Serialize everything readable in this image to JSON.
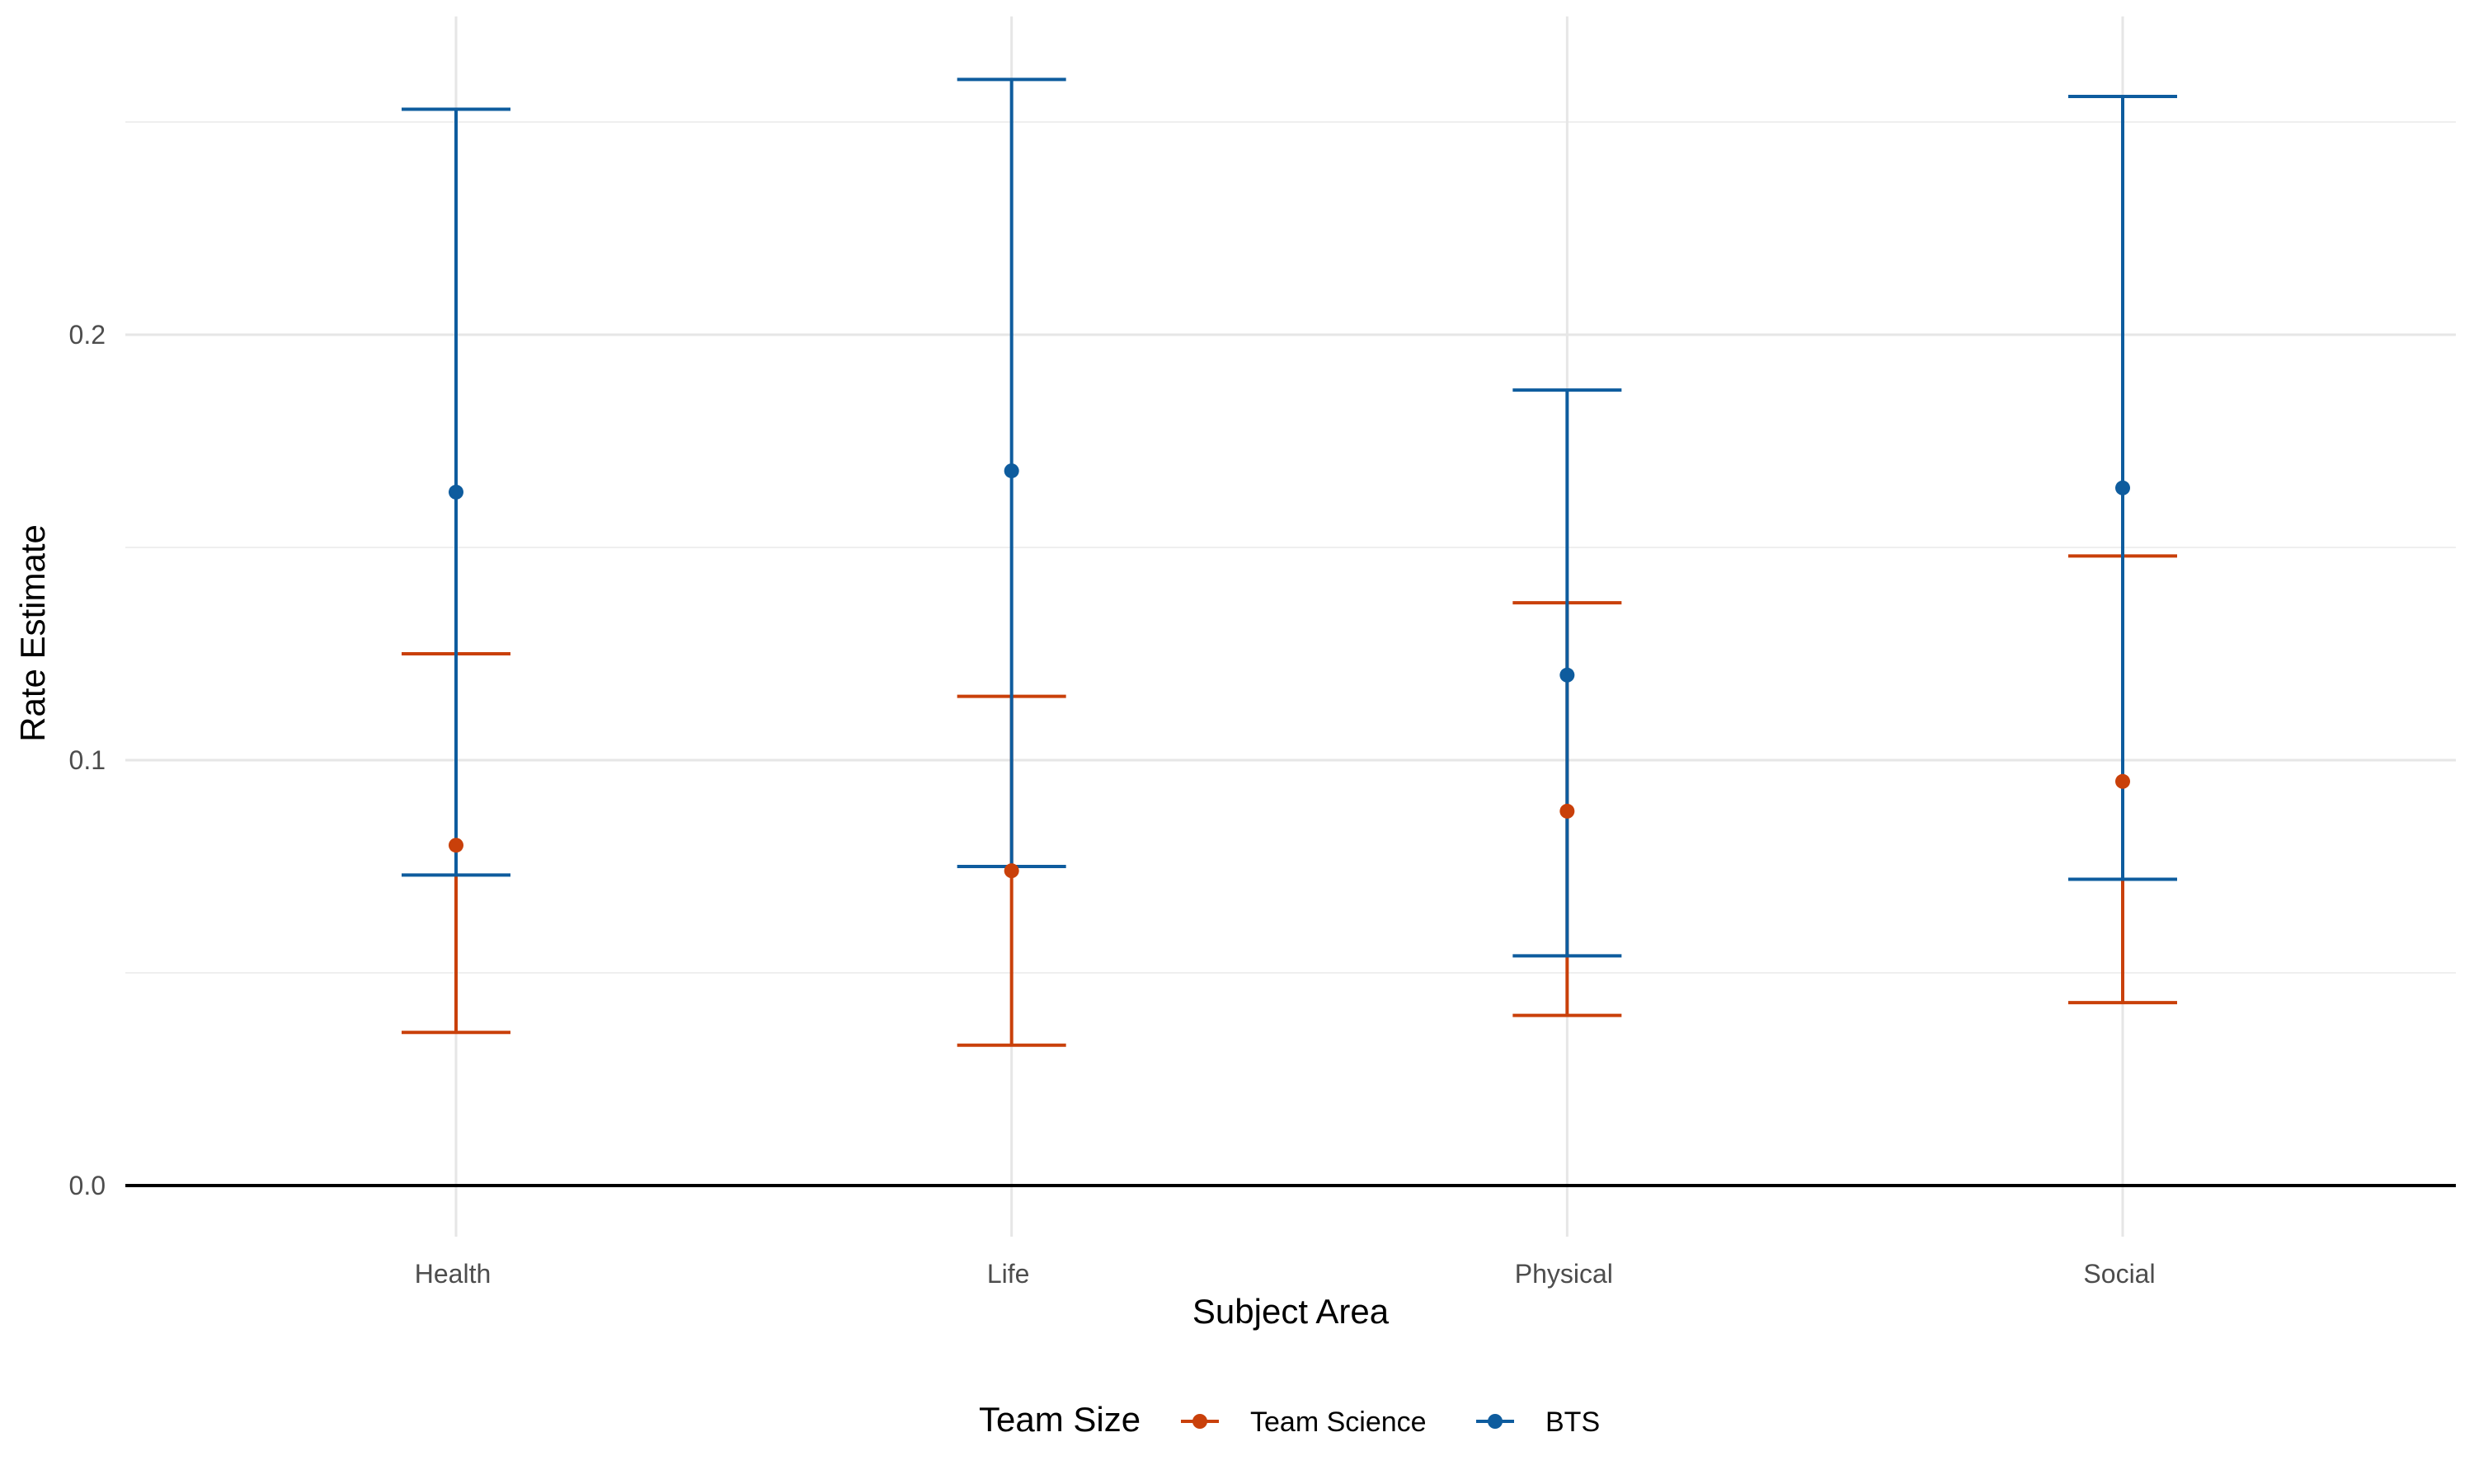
{
  "chart_data": {
    "type": "errorbar",
    "title": "",
    "xlabel": "Subject Area",
    "ylabel": "Rate Estimate",
    "categories": [
      "Health",
      "Life",
      "Physical",
      "Social"
    ],
    "ylim": [
      -0.012,
      0.275
    ],
    "yticks": [
      0.0,
      0.1,
      0.2
    ],
    "ytick_labels": [
      "0.0",
      "0.1",
      "0.2"
    ],
    "grid": true,
    "hline_at": 0,
    "legend": {
      "title": "Team Size",
      "position": "bottom",
      "entries": [
        "Team Science",
        "BTS"
      ]
    },
    "series": [
      {
        "name": "Team Science",
        "color": "#C9400A",
        "estimate": [
          0.08,
          0.074,
          0.088,
          0.095
        ],
        "lower": [
          0.036,
          0.033,
          0.04,
          0.043
        ],
        "upper": [
          0.125,
          0.115,
          0.137,
          0.148
        ]
      },
      {
        "name": "BTS",
        "color": "#0E5C9E",
        "estimate": [
          0.163,
          0.168,
          0.12,
          0.164
        ],
        "lower": [
          0.073,
          0.075,
          0.054,
          0.072
        ],
        "upper": [
          0.253,
          0.26,
          0.187,
          0.256
        ]
      }
    ]
  }
}
